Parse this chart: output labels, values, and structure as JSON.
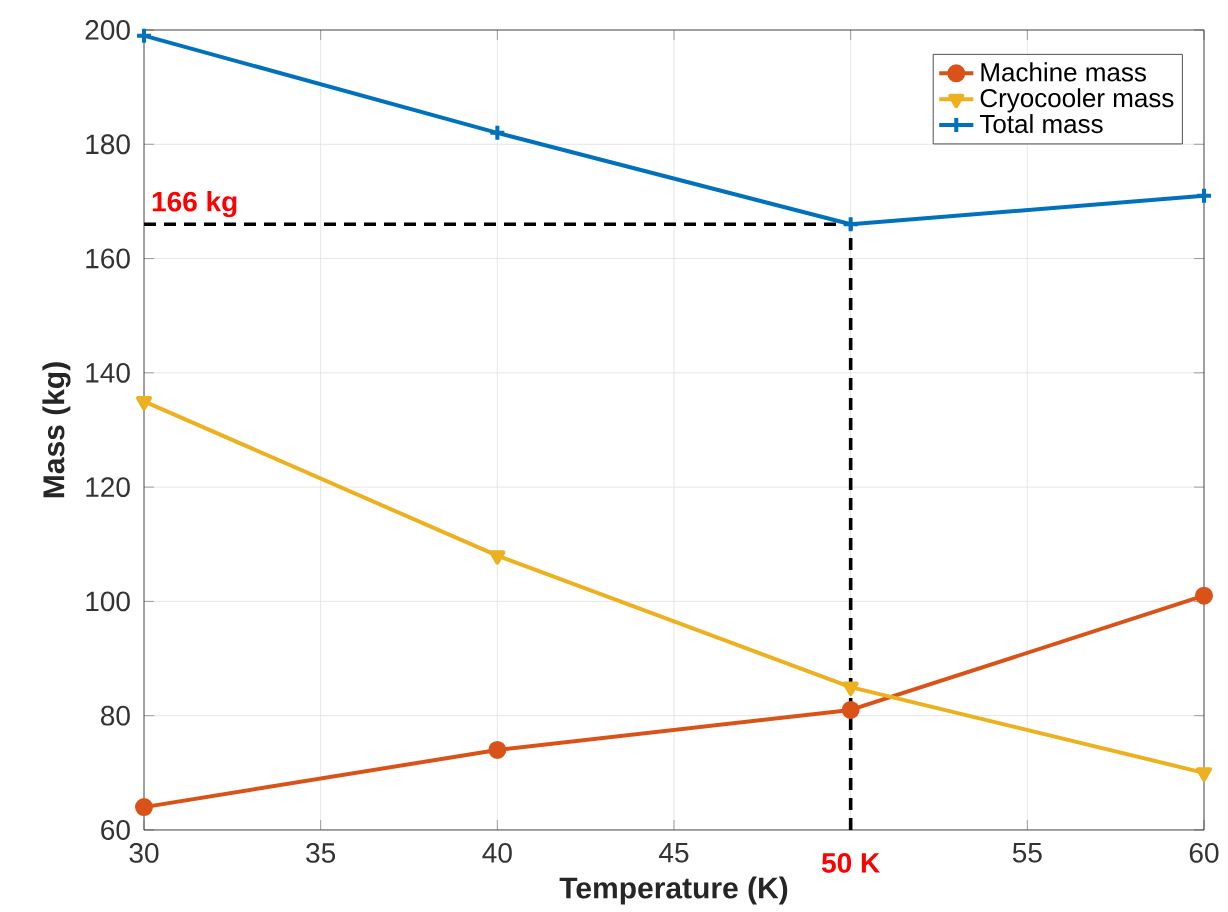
{
  "chart_data": {
    "type": "line",
    "xlabel": "Temperature (K)",
    "ylabel": "Mass (kg)",
    "x": [
      30,
      40,
      50,
      60
    ],
    "series": [
      {
        "name": "Machine mass",
        "color": "#d95319",
        "marker": "circle",
        "values": [
          64,
          74,
          81,
          101
        ]
      },
      {
        "name": "Cryocooler mass",
        "color": "#edb120",
        "marker": "triangle",
        "values": [
          135,
          108,
          85,
          70
        ]
      },
      {
        "name": "Total mass",
        "color": "#0072bd",
        "marker": "cross",
        "values": [
          199,
          182,
          166,
          171
        ]
      }
    ],
    "xlim": [
      30,
      60
    ],
    "ylim": [
      60,
      200
    ],
    "xticks": [
      30,
      35,
      40,
      45,
      {
        "value": 50,
        "label": null
      },
      55,
      60
    ],
    "yticks": [
      60,
      80,
      100,
      120,
      140,
      160,
      180,
      200
    ],
    "ref_lines": [
      {
        "axis": "y",
        "value": 166,
        "label": "166 kg",
        "color": "#000000",
        "line_style": "dashed"
      },
      {
        "axis": "x",
        "value": 50,
        "label": "50 K",
        "color": "#000000",
        "line_style": "dashed"
      }
    ],
    "grid": true,
    "legend": "top right",
    "line_style": "solid"
  }
}
